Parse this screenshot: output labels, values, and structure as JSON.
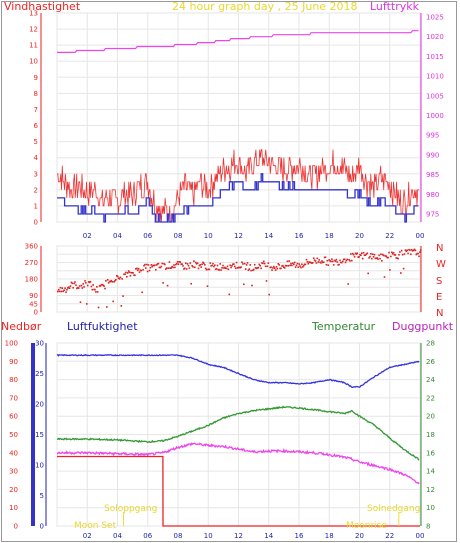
{
  "header": {
    "wind_title": "Vindhastighet",
    "date_title": "24 hour graph day , 25 June 2018",
    "pressure_title": "Lufttrykk"
  },
  "lower_header": {
    "rain_title": "Nedbør",
    "humidity_title": "Luftfuktighet",
    "temperature_title": "Temperatur",
    "dewpoint_title": "Duggpunkt"
  },
  "annotations": {
    "sunrise": "Soloppgang",
    "sunset": "Solnedgang",
    "moon_set": "Moon Set",
    "moon_rise": "Moonrise"
  },
  "colors": {
    "wind": "#ee3333",
    "wind_avg": "#3333cc",
    "pressure": "#ee44ee",
    "direction": "#dd2222",
    "rain": "#ee2222",
    "humidity": "#3333dd",
    "temperature": "#339933",
    "dewpoint": "#ee44ee",
    "rain_axis_bar": "#3333cc",
    "sun_text": "#eedd33",
    "title_date": "#eedd33"
  },
  "chart_data": [
    {
      "type": "line",
      "x_ticks": [
        "02",
        "04",
        "06",
        "08",
        "10",
        "12",
        "14",
        "16",
        "18",
        "20",
        "22",
        "00"
      ],
      "x_hours": [
        0,
        2,
        4,
        6,
        8,
        10,
        12,
        14,
        16,
        18,
        20,
        22,
        24
      ],
      "ylim_left": [
        0,
        13
      ],
      "y_ticks_left": [
        0,
        1,
        2,
        3,
        4,
        5,
        6,
        7,
        8,
        9,
        10,
        11,
        12,
        13
      ],
      "ylim_right": [
        973,
        1026
      ],
      "y_ticks_right": [
        975,
        980,
        985,
        990,
        995,
        1000,
        1005,
        1010,
        1015,
        1020,
        1025
      ],
      "series": [
        {
          "key": "wind_gust",
          "axis": "left",
          "hours": [
            0,
            0.5,
            1,
            1.5,
            2,
            2.5,
            3,
            3.5,
            4,
            4.5,
            5,
            5.5,
            6,
            6.5,
            7,
            7.5,
            8,
            8.5,
            9,
            9.5,
            10,
            10.5,
            11,
            11.5,
            12,
            12.5,
            13,
            13.5,
            14,
            14.5,
            15,
            15.5,
            16,
            16.5,
            17,
            17.5,
            18,
            18.5,
            19,
            19.5,
            20,
            20.5,
            21,
            21.5,
            22,
            22.5,
            23,
            23.5,
            24
          ],
          "values": [
            3,
            2.5,
            2,
            2.2,
            1.8,
            2,
            1.3,
            1.5,
            1.2,
            1.8,
            1.6,
            2.2,
            2.5,
            1,
            0.8,
            0.5,
            1.5,
            2.2,
            1.8,
            2.5,
            2,
            2.8,
            3.2,
            3.5,
            3.8,
            3,
            3.6,
            4,
            3.8,
            3.5,
            3.2,
            3.4,
            3.6,
            3,
            2.8,
            3.3,
            3.5,
            3.6,
            3.2,
            2.8,
            3.5,
            2.5,
            2.2,
            2.8,
            2.4,
            1.5,
            1.2,
            2,
            1.8
          ]
        },
        {
          "key": "wind_avg",
          "axis": "left",
          "hours": [
            0,
            0.5,
            1,
            1.5,
            2,
            2.5,
            3,
            3.5,
            4,
            4.5,
            5,
            5.5,
            6,
            6.5,
            7,
            7.5,
            8,
            8.5,
            9,
            9.5,
            10,
            10.5,
            11,
            11.5,
            12,
            12.5,
            13,
            13.5,
            14,
            14.5,
            15,
            15.5,
            16,
            16.5,
            17,
            17.5,
            18,
            18.5,
            19,
            19.5,
            20,
            20.5,
            21,
            21.5,
            22,
            22.5,
            23,
            23.5,
            24
          ],
          "values": [
            1.5,
            1.2,
            1,
            0.8,
            0.6,
            0.8,
            0.3,
            0.5,
            0.4,
            0.8,
            0.6,
            1,
            1.4,
            0.3,
            0.1,
            0.1,
            0.6,
            0.8,
            1,
            1,
            1,
            1.5,
            2,
            2.4,
            2.4,
            2,
            2.2,
            2.6,
            2.6,
            2.4,
            2,
            2.2,
            2,
            2,
            1.8,
            2,
            2,
            2.2,
            2,
            1.6,
            1.8,
            1.2,
            1,
            1.4,
            1,
            0.5,
            0.4,
            0.8,
            1
          ]
        },
        {
          "key": "pressure",
          "axis": "right",
          "hours": [
            0,
            2,
            4,
            6,
            8,
            10,
            12,
            14,
            16,
            18,
            20,
            22,
            24
          ],
          "values": [
            1016,
            1016.4,
            1017,
            1017.4,
            1017.8,
            1018.5,
            1019.5,
            1020.2,
            1020.6,
            1021,
            1021,
            1021.1,
            1021.3
          ]
        }
      ]
    },
    {
      "type": "scatter",
      "ylim": [
        0,
        360
      ],
      "y_ticks": [
        0,
        45,
        90,
        135,
        180,
        225,
        270,
        315,
        360
      ],
      "y_tick_labels": [
        "0",
        "45",
        "90",
        "135",
        "180",
        "225",
        "270",
        "315",
        "360"
      ],
      "compass_labels": [
        "N",
        "W",
        "S",
        "E",
        "N"
      ],
      "series": [
        {
          "key": "direction",
          "hours": [
            0,
            0.5,
            1,
            1.5,
            2,
            2.5,
            3,
            3.5,
            4,
            4.5,
            5,
            5.5,
            6,
            6.5,
            7,
            7.5,
            8,
            8.5,
            9,
            9.5,
            10,
            10.5,
            11,
            11.5,
            12,
            12.5,
            13,
            13.5,
            14,
            14.5,
            15,
            15.5,
            16,
            16.5,
            17,
            17.5,
            18,
            18.5,
            19,
            19.5,
            20,
            20.5,
            21,
            21.5,
            22,
            22.5,
            23,
            23.5,
            24
          ],
          "values": [
            120,
            125,
            150,
            140,
            160,
            120,
            135,
            185,
            180,
            200,
            215,
            240,
            240,
            245,
            250,
            255,
            255,
            250,
            260,
            255,
            248,
            245,
            250,
            255,
            255,
            250,
            240,
            260,
            250,
            245,
            255,
            260,
            255,
            270,
            280,
            285,
            270,
            275,
            290,
            300,
            305,
            310,
            300,
            295,
            315,
            310,
            320,
            325,
            320
          ]
        }
      ]
    },
    {
      "type": "line",
      "ylim_rain": [
        0,
        100
      ],
      "y_ticks_rain": [
        0,
        10,
        20,
        30,
        40,
        50,
        60,
        70,
        80,
        90,
        100
      ],
      "ylim_humidity": [
        0,
        30
      ],
      "y_ticks_humidity": [
        0,
        5,
        10,
        15,
        20,
        25,
        30
      ],
      "ylim_temperature": [
        8,
        28
      ],
      "y_ticks_temperature": [
        8,
        10,
        12,
        14,
        16,
        18,
        20,
        22,
        24,
        26,
        28
      ],
      "series": [
        {
          "key": "humidity",
          "axis": "humidity",
          "hours": [
            0,
            2,
            4,
            6,
            7,
            8,
            9,
            10,
            11,
            12,
            13,
            14,
            15,
            16,
            17,
            18,
            19,
            19.5,
            20,
            21,
            22,
            23,
            24
          ],
          "values": [
            28,
            28,
            28,
            28,
            28,
            28,
            27.5,
            26.5,
            26,
            25,
            24,
            23.5,
            23.5,
            23.3,
            23.5,
            24,
            23.5,
            22.8,
            22.8,
            24.5,
            26,
            26.5,
            27
          ]
        },
        {
          "key": "temperature",
          "axis": "temperature",
          "hours": [
            0,
            2,
            4,
            6,
            7,
            8,
            9,
            10,
            11,
            12,
            13,
            14,
            15,
            16,
            17,
            18,
            19,
            19.5,
            20,
            21,
            22,
            23,
            24
          ],
          "values": [
            17.5,
            17.5,
            17.4,
            17.2,
            17.3,
            17.8,
            18.4,
            19,
            19.8,
            20.3,
            20.6,
            20.8,
            21,
            20.9,
            20.7,
            20.5,
            20.3,
            20.6,
            20,
            19,
            17.6,
            16.3,
            15.2
          ]
        },
        {
          "key": "dewpoint",
          "axis": "temperature",
          "hours": [
            0,
            2,
            4,
            6,
            7,
            8,
            9,
            10,
            11,
            12,
            13,
            14,
            15,
            16,
            17,
            18,
            19,
            19.5,
            20,
            21,
            22,
            23,
            24
          ],
          "values": [
            16,
            16,
            15.9,
            15.8,
            16,
            16.6,
            17,
            16.8,
            16.7,
            16.4,
            16.1,
            16.2,
            16.2,
            16.1,
            16,
            15.8,
            15.5,
            15.3,
            15,
            14.6,
            14.2,
            13.6,
            12.6
          ]
        },
        {
          "key": "rain",
          "axis": "rain",
          "hours": [
            0,
            7,
            7.01,
            24
          ],
          "values": [
            38,
            38,
            0,
            0
          ]
        }
      ]
    }
  ]
}
